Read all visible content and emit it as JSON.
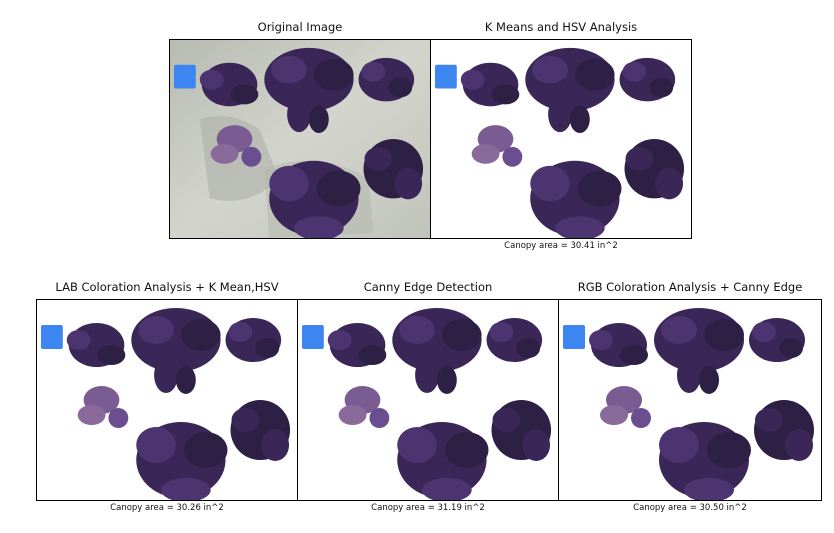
{
  "figure": {
    "background_color": "#ffffff",
    "panels": [
      {
        "id": "original",
        "title": "Original Image",
        "caption": "",
        "background": "photo",
        "has_photo_background": true
      },
      {
        "id": "kmeans-hsv",
        "title": "K Means and HSV Analysis",
        "caption": "Canopy area = 30.41 in^2",
        "background": "white"
      },
      {
        "id": "lab",
        "title": "LAB Coloration Analysis + K Mean,HSV",
        "caption": "Canopy area = 30.26 in^2",
        "background": "white"
      },
      {
        "id": "canny",
        "title": "Canny Edge Detection",
        "caption": "Canopy area = 31.19 in^2",
        "background": "white"
      },
      {
        "id": "rgb-canny",
        "title": "RGB Coloration Analysis + Canny Edge",
        "caption": "Canopy area = 30.50 in^2",
        "background": "white"
      }
    ]
  },
  "colors": {
    "plant_dark": "#2e1f45",
    "plant_mid": "#4b3470",
    "plant_light": "#6a4e8f",
    "plant_pale": "#8a6a9a",
    "calibration_square": "#3d86f2",
    "photo_background": "#c9cbc3",
    "photo_shadow": "#aeb1a8"
  }
}
